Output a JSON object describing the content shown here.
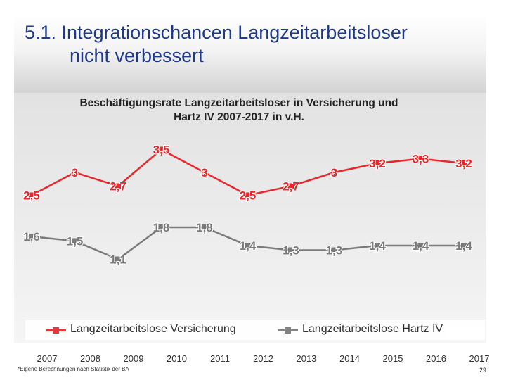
{
  "slide": {
    "title_line1": "5.1. Integrationschancen Langzeitarbeitsloser",
    "title_line2": "nicht verbessert",
    "footnote": "*Eigene Berechnungen nach Statistik der BA",
    "page_number": "29"
  },
  "chart_data": {
    "type": "line",
    "title": "Beschäftigungsrate Langzeitarbeitsloser in Versicherung und Hartz IV 2007-2017 in v.H.",
    "title_line1": "Beschäftigungsrate Langzeitarbeitsloser in Versicherung und",
    "title_line2": "Hartz IV 2007-2017 in v.H.",
    "categories": [
      "2007",
      "2008",
      "2009",
      "2010",
      "2011",
      "2012",
      "2013",
      "2014",
      "2015",
      "2016",
      "2017"
    ],
    "ylim": [
      0,
      4.2
    ],
    "grid": false,
    "legend_position": "bottom",
    "series": [
      {
        "name": "Langzeitarbeitslose Versicherung",
        "color": "#e8272c",
        "values": [
          2.5,
          3.0,
          2.7,
          3.5,
          3.0,
          2.5,
          2.7,
          3.0,
          3.2,
          3.3,
          3.2
        ],
        "labels": [
          "2,5",
          "3",
          "2,7",
          "3,5",
          "3",
          "2,5",
          "2,7",
          "3",
          "3,2",
          "3,3",
          "3,2"
        ]
      },
      {
        "name": "Langzeitarbeitslose Hartz IV",
        "color": "#7a7a7a",
        "values": [
          1.6,
          1.5,
          1.1,
          1.8,
          1.8,
          1.4,
          1.3,
          1.3,
          1.4,
          1.4,
          1.4
        ],
        "labels": [
          "1,6",
          "1,5",
          "1,1",
          "1,8",
          "1,8",
          "1,4",
          "1,3",
          "1,3",
          "1,4",
          "1,4",
          "1,4"
        ]
      }
    ]
  }
}
